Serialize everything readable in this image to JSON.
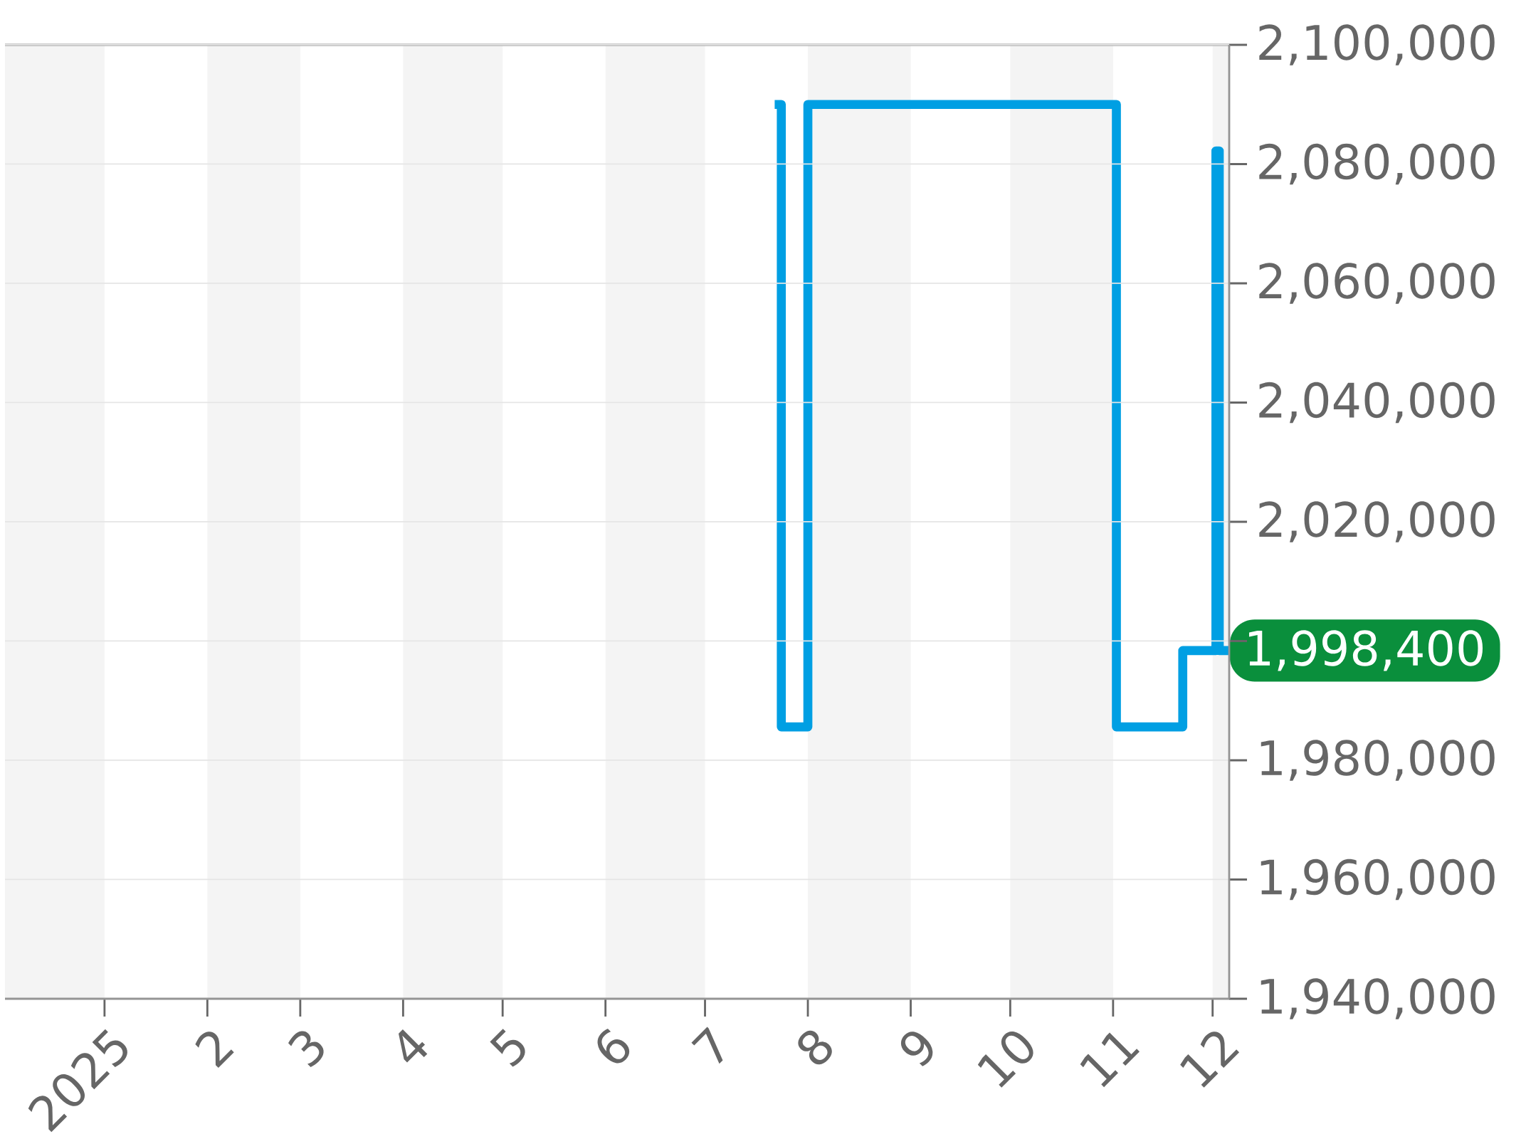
{
  "chart_data": {
    "type": "step",
    "x": [
      "2025-07-22",
      "2025-07-24",
      "2025-08-01",
      "2025-11-02",
      "2025-11-22",
      "2025-12-02",
      "2025-12-03",
      "2025-12-06"
    ],
    "series": [
      {
        "color": "#009fe3",
        "values": [
          2090000,
          1985600,
          2090000,
          1985600,
          1998400,
          2082200,
          1998400,
          1998400
        ]
      }
    ],
    "xlim": [
      "2024-12-02",
      "2025-12-06"
    ],
    "xticks": [
      {
        "value": "2025-01-01",
        "label": "2025"
      },
      {
        "value": "2025-02-01",
        "label": "2"
      },
      {
        "value": "2025-03-01",
        "label": "3"
      },
      {
        "value": "2025-04-01",
        "label": "4"
      },
      {
        "value": "2025-05-01",
        "label": "5"
      },
      {
        "value": "2025-06-01",
        "label": "6"
      },
      {
        "value": "2025-07-01",
        "label": "7"
      },
      {
        "value": "2025-08-01",
        "label": "8"
      },
      {
        "value": "2025-09-01",
        "label": "9"
      },
      {
        "value": "2025-10-01",
        "label": "10"
      },
      {
        "value": "2025-11-01",
        "label": "11"
      },
      {
        "value": "2025-12-01",
        "label": "12"
      }
    ],
    "ylim": [
      1940000,
      2100000
    ],
    "yticks": [
      {
        "value": 1940000,
        "label": "1,940,000"
      },
      {
        "value": 1960000,
        "label": "1,960,000"
      },
      {
        "value": 1980000,
        "label": "1,980,000"
      },
      {
        "value": 2000000,
        "label": null
      },
      {
        "value": 2020000,
        "label": "2,020,000"
      },
      {
        "value": 2040000,
        "label": "2,040,000"
      },
      {
        "value": 2060000,
        "label": "2,060,000"
      },
      {
        "value": 2080000,
        "label": "2,080,000"
      },
      {
        "value": 2100000,
        "label": "2,100,000"
      }
    ],
    "grid": "y",
    "bands": [
      {
        "axis": "x",
        "from": "2024-12-02",
        "to": "2025-01-01",
        "color": "#f4f4f4"
      },
      {
        "axis": "x",
        "from": "2025-02-01",
        "to": "2025-03-01",
        "color": "#f4f4f4"
      },
      {
        "axis": "x",
        "from": "2025-04-01",
        "to": "2025-05-01",
        "color": "#f4f4f4"
      },
      {
        "axis": "x",
        "from": "2025-06-01",
        "to": "2025-07-01",
        "color": "#f4f4f4"
      },
      {
        "axis": "x",
        "from": "2025-08-01",
        "to": "2025-09-01",
        "color": "#f4f4f4"
      },
      {
        "axis": "x",
        "from": "2025-10-01",
        "to": "2025-11-01",
        "color": "#f4f4f4"
      },
      {
        "axis": "x",
        "from": "2025-12-01",
        "to": "2025-12-06",
        "color": "#f4f4f4"
      }
    ],
    "annotations": [
      {
        "text": "1,998,400",
        "x": "2025-12-06",
        "y": 1998400
      }
    ]
  }
}
